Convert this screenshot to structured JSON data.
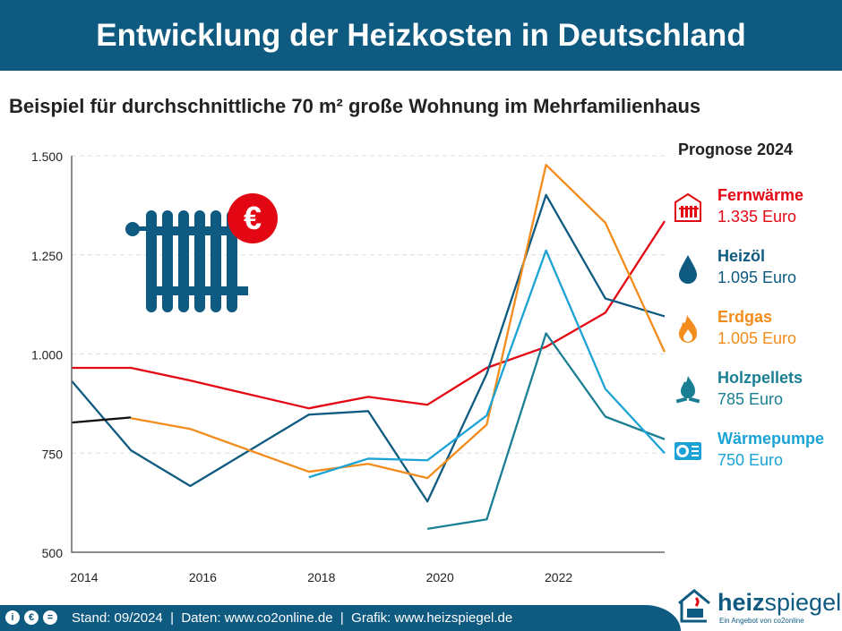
{
  "header": {
    "title": "Entwicklung der Heizkosten in Deutschland"
  },
  "subtitle": "Beispiel für durchschnittliche 70 m² große Wohnung im Mehrfamilienhaus",
  "legend": {
    "title": "Prognose 2024",
    "items": [
      {
        "name": "Fernwärme",
        "value": "1.335 Euro",
        "color": "#e30613",
        "icon": "district-heating-icon"
      },
      {
        "name": "Heizöl",
        "value": "1.095 Euro",
        "color": "#0e5a80",
        "icon": "oil-drop-icon"
      },
      {
        "name": "Erdgas",
        "value": "1.005 Euro",
        "color": "#f28c1c",
        "icon": "flame-icon"
      },
      {
        "name": "Holzpellets",
        "value": "785 Euro",
        "color": "#1b7f93",
        "icon": "wood-fire-icon"
      },
      {
        "name": "Wärmepumpe",
        "value": "750 Euro",
        "color": "#1aa3d4",
        "icon": "heat-pump-icon"
      }
    ]
  },
  "footer": {
    "text": "Stand: 09/2024  |  Daten: www.co2online.de  |  Grafik: www.heizspiegel.de",
    "logo": "heizspiegel",
    "logo_sub": "Ein Angebot von co2online"
  },
  "chart_data": {
    "type": "line",
    "xlim": [
      2014,
      2024
    ],
    "ylim": [
      500,
      1500
    ],
    "x_ticks": [
      "2014",
      "2016",
      "2018",
      "2020",
      "2022"
    ],
    "y_ticks": [
      "500",
      "750",
      "1.000",
      "1.250",
      "1.500"
    ],
    "grid": "horizontal dashed",
    "legend_placement": "right",
    "series": [
      {
        "name": "Fernwärme",
        "color": "#e30613",
        "points": [
          [
            2014,
            965
          ],
          [
            2015,
            965
          ],
          [
            2016,
            933
          ],
          [
            2018,
            863
          ],
          [
            2019,
            892
          ],
          [
            2020,
            872
          ],
          [
            2021,
            965
          ],
          [
            2022,
            1018
          ],
          [
            2023,
            1104
          ],
          [
            2024,
            1335
          ]
        ]
      },
      {
        "name": "Heizöl",
        "color": "#0e5a80",
        "points": [
          [
            2014,
            932
          ],
          [
            2015,
            757
          ],
          [
            2016,
            667
          ],
          [
            2018,
            847
          ],
          [
            2019,
            856
          ],
          [
            2020,
            628
          ],
          [
            2021,
            950
          ],
          [
            2022,
            1401
          ],
          [
            2023,
            1140
          ],
          [
            2024,
            1095
          ]
        ]
      },
      {
        "color": "#111111",
        "points": [
          [
            2014,
            827
          ],
          [
            2015,
            840
          ]
        ]
      },
      {
        "name": "Erdgas",
        "color": "#f28c1c",
        "points": [
          [
            2015,
            838
          ],
          [
            2016,
            811
          ],
          [
            2018,
            703
          ],
          [
            2019,
            723
          ],
          [
            2020,
            687
          ],
          [
            2021,
            822
          ],
          [
            2022,
            1477
          ],
          [
            2023,
            1331
          ],
          [
            2024,
            1005
          ]
        ]
      },
      {
        "name": "Holzpellets",
        "color": "#1b7f93",
        "points": [
          [
            2020,
            559
          ],
          [
            2021,
            583
          ],
          [
            2022,
            1052
          ],
          [
            2023,
            842
          ],
          [
            2024,
            785
          ]
        ]
      },
      {
        "name": "Wärmepumpe",
        "color": "#1aa3d4",
        "points": [
          [
            2018,
            689
          ],
          [
            2019,
            736
          ],
          [
            2020,
            732
          ],
          [
            2021,
            845
          ],
          [
            2022,
            1261
          ],
          [
            2023,
            912
          ],
          [
            2024,
            750
          ]
        ]
      }
    ]
  }
}
